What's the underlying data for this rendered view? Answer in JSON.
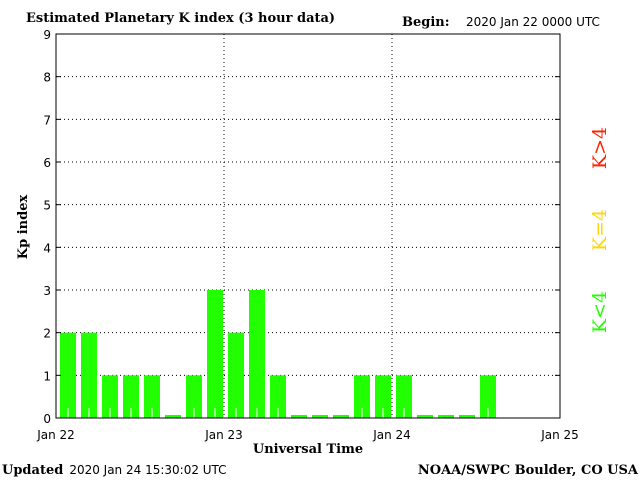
{
  "chart_data": {
    "type": "bar",
    "title": "Estimated Planetary K index (3 hour data)",
    "begin_label": "Begin:",
    "begin_value": "2020 Jan 22 0000 UTC",
    "xlabel": "Universal Time",
    "ylabel": "Kp index",
    "ylim": [
      0,
      9
    ],
    "yticks": [
      "0",
      "1",
      "2",
      "3",
      "4",
      "5",
      "6",
      "7",
      "8",
      "9"
    ],
    "xticks": [
      "Jan 22",
      "Jan 23",
      "Jan 24",
      "Jan 25"
    ],
    "bin_hours": 3,
    "values": [
      2,
      2,
      1,
      1,
      1,
      0,
      1,
      3,
      2,
      3,
      1,
      0,
      0,
      0,
      1,
      1,
      1,
      0,
      0,
      0,
      1
    ],
    "grid": "dotted",
    "legend": [
      {
        "label": "K<4",
        "color": "#22ff00"
      },
      {
        "label": "K=4",
        "color": "#ffd700"
      },
      {
        "label": "K>4",
        "color": "#ff2200"
      }
    ],
    "legend_placement": "right",
    "bar_color": "#22ff00"
  },
  "footer": {
    "updated_label": "Updated",
    "updated_value": "2020 Jan 24 15:30:02 UTC",
    "source": "NOAA/SWPC Boulder, CO USA"
  }
}
